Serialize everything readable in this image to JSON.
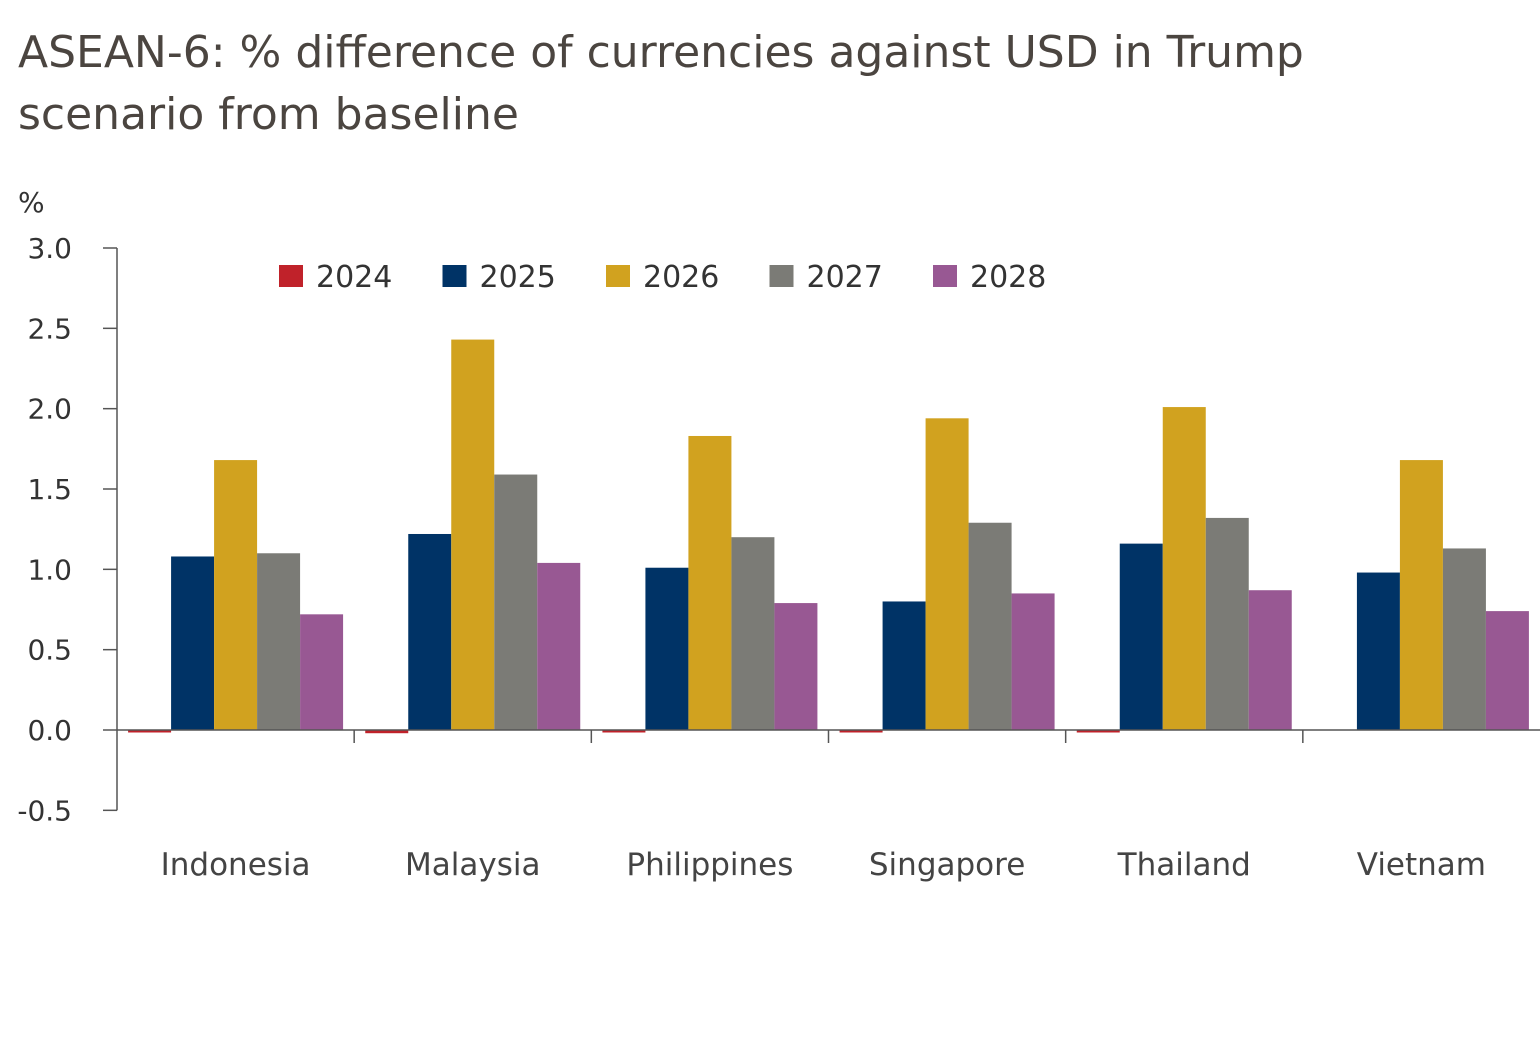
{
  "chart_data": {
    "type": "bar",
    "title": "ASEAN-6: % difference of currencies against USD in Trump scenario from baseline",
    "ylabel": "%",
    "xlabel": "",
    "ylim": [
      -0.5,
      3.0
    ],
    "yticks": [
      "3.0",
      "2.5",
      "2.0",
      "1.5",
      "1.0",
      "0.5",
      "0.0",
      "-0.5"
    ],
    "grid": false,
    "legend_position": "top",
    "categories": [
      "Indonesia",
      "Malaysia",
      "Philippines",
      "Singapore",
      "Thailand",
      "Vietnam"
    ],
    "series": [
      {
        "name": "2024",
        "color": "#c0222a",
        "values": [
          -0.01,
          -0.02,
          -0.01,
          -0.01,
          -0.01,
          0.0
        ]
      },
      {
        "name": "2025",
        "color": "#003366",
        "values": [
          1.08,
          1.22,
          1.01,
          0.8,
          1.16,
          0.98
        ]
      },
      {
        "name": "2026",
        "color": "#d1a21f",
        "values": [
          1.68,
          2.43,
          1.83,
          1.94,
          2.01,
          1.68
        ]
      },
      {
        "name": "2027",
        "color": "#7b7b76",
        "values": [
          1.1,
          1.59,
          1.2,
          1.29,
          1.32,
          1.13
        ]
      },
      {
        "name": "2028",
        "color": "#985893",
        "values": [
          0.72,
          1.04,
          0.79,
          0.85,
          0.87,
          0.74
        ]
      }
    ]
  }
}
